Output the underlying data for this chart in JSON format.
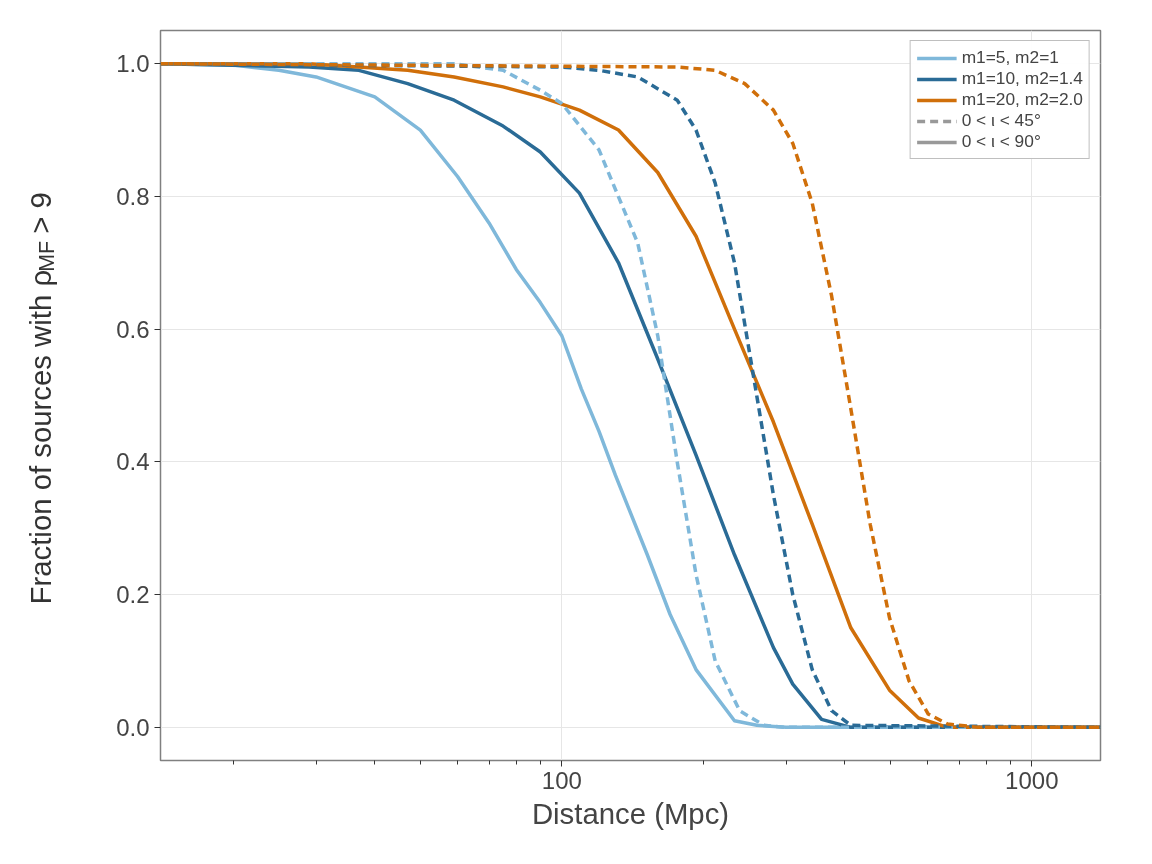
{
  "chart_data": {
    "type": "line",
    "xlabel": "Distance (Mpc)",
    "ylabel": "Fraction of sources with ρ$_{MF}$ > 9",
    "log": "x",
    "grid": true,
    "legend": "top right",
    "xlim": [
      14,
      1400
    ],
    "ylim": [
      -0.05,
      1.05
    ],
    "xticks": [
      {
        "value": 20,
        "label": null
      },
      {
        "value": 30,
        "label": null
      },
      {
        "value": 40,
        "label": null
      },
      {
        "value": 50,
        "label": null
      },
      {
        "value": 60,
        "label": null
      },
      {
        "value": 70,
        "label": null
      },
      {
        "value": 80,
        "label": null
      },
      {
        "value": 90,
        "label": null
      },
      100,
      {
        "value": 200,
        "label": null
      },
      {
        "value": 300,
        "label": null
      },
      {
        "value": 400,
        "label": null
      },
      {
        "value": 500,
        "label": null
      },
      {
        "value": 600,
        "label": null
      },
      {
        "value": 700,
        "label": null
      },
      {
        "value": 800,
        "label": null
      },
      {
        "value": 900,
        "label": null
      },
      1000
    ],
    "yticks": [
      {
        "value": 0,
        "label": "0.0"
      },
      {
        "value": 0.2,
        "label": "0.2"
      },
      {
        "value": 0.4,
        "label": "0.4"
      },
      {
        "value": 0.6,
        "label": "0.6"
      },
      {
        "value": 0.8,
        "label": "0.8"
      },
      {
        "value": 1,
        "label": "1.0"
      }
    ],
    "series": [
      {
        "name": "m1=5, m2=1",
        "color": "#7fb8da",
        "line_style": "solid",
        "x": [
          14,
          20,
          25,
          30,
          40,
          50,
          60,
          70,
          80,
          90,
          100,
          110,
          120,
          130,
          152,
          170,
          193,
          233,
          260,
          300,
          1400
        ],
        "values": [
          1.0,
          0.998,
          0.99,
          0.98,
          0.95,
          0.9,
          0.83,
          0.76,
          0.69,
          0.64,
          0.59,
          0.51,
          0.446,
          0.38,
          0.26,
          0.17,
          0.087,
          0.01,
          0.003,
          0,
          0
        ]
      },
      {
        "name": "m1=10, m2=1.4",
        "color": "#2a6b96",
        "line_style": "solid",
        "x": [
          14,
          29,
          37,
          47,
          59,
          75,
          90,
          109,
          132,
          160,
          193,
          233,
          282,
          310,
          357,
          412,
          1400
        ],
        "values": [
          1.0,
          0.995,
          0.99,
          0.97,
          0.945,
          0.906,
          0.867,
          0.805,
          0.7,
          0.555,
          0.41,
          0.26,
          0.12,
          0.065,
          0.012,
          0,
          0
        ]
      },
      {
        "name": "m1=20, m2=2.0",
        "color": "#d06f0a",
        "line_style": "solid",
        "x": [
          14,
          29,
          47,
          59,
          75,
          90,
          109,
          132,
          160,
          193,
          233,
          282,
          341,
          412,
          498,
          574,
          662,
          1400
        ],
        "values": [
          1.0,
          1.0,
          0.99,
          0.98,
          0.965,
          0.95,
          0.93,
          0.9,
          0.836,
          0.74,
          0.6,
          0.46,
          0.306,
          0.15,
          0.056,
          0.014,
          0,
          0
        ]
      },
      {
        "color": "#7fb8da",
        "line_style": "dashed",
        "x": [
          14,
          59,
          75,
          90,
          100,
          120,
          145,
          160,
          176,
          193,
          212,
          239,
          269,
          300,
          1400
        ],
        "values": [
          1.0,
          1.0,
          0.99,
          0.96,
          0.94,
          0.87,
          0.73,
          0.59,
          0.4,
          0.23,
          0.1,
          0.025,
          0.003,
          0,
          0
        ]
      },
      {
        "color": "#2a6b96",
        "line_style": "dashed",
        "x": [
          14,
          100,
          120,
          145,
          176,
          193,
          212,
          233,
          257,
          282,
          310,
          341,
          375,
          412,
          1400
        ],
        "values": [
          1.0,
          0.995,
          0.99,
          0.98,
          0.945,
          0.9,
          0.82,
          0.7,
          0.52,
          0.35,
          0.2,
          0.087,
          0.025,
          0.003,
          0
        ]
      },
      {
        "color": "#d06f0a",
        "line_style": "dashed",
        "x": [
          14,
          176,
          212,
          245,
          282,
          310,
          341,
          375,
          412,
          453,
          498,
          548,
          602,
          662,
          768,
          1400
        ],
        "values": [
          1.0,
          0.995,
          0.99,
          0.97,
          0.93,
          0.88,
          0.79,
          0.65,
          0.48,
          0.306,
          0.165,
          0.07,
          0.02,
          0.005,
          0,
          0
        ]
      },
      {
        "name": "0 < ι < 45°",
        "color": "#999999",
        "line_style": "dashed"
      },
      {
        "name": "0 < ι < 90°",
        "color": "#999999",
        "line_style": "solid"
      }
    ]
  }
}
